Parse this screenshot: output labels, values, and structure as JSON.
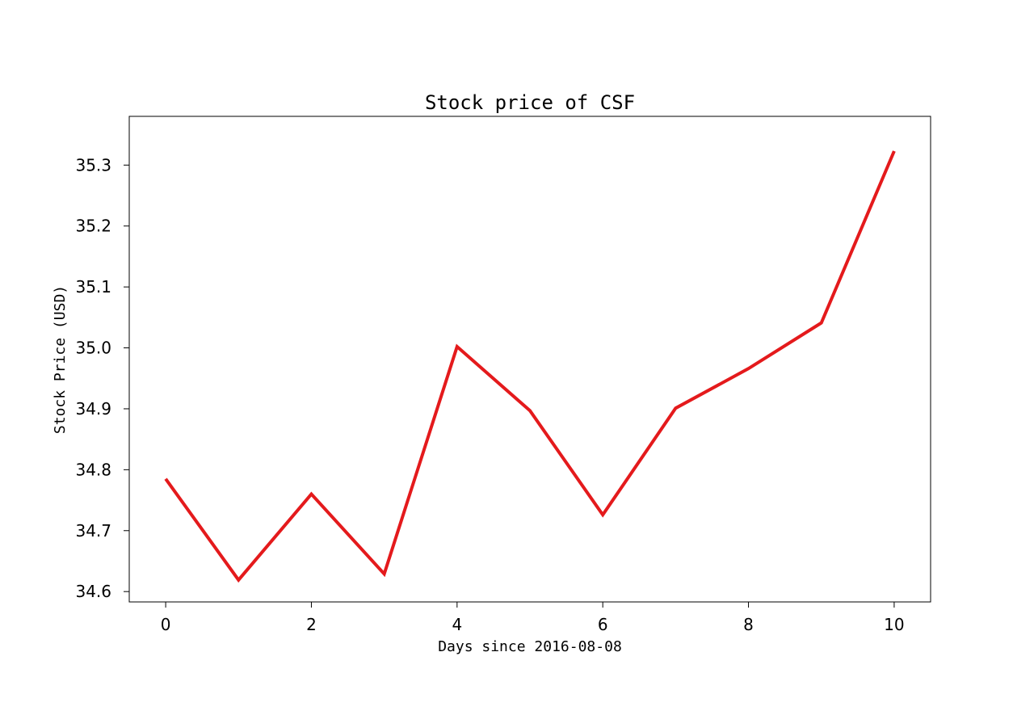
{
  "chart_data": {
    "type": "line",
    "title": "Stock price of CSF",
    "xlabel": "Days since 2016-08-08",
    "ylabel": "Stock Price (USD)",
    "x": [
      0,
      1,
      2,
      3,
      4,
      5,
      6,
      7,
      8,
      9,
      10
    ],
    "series": [
      {
        "values": [
          34.785,
          34.619,
          34.76,
          34.629,
          35.002,
          34.897,
          34.726,
          34.901,
          34.966,
          35.041,
          35.323
        ],
        "color": "#e41a1c"
      }
    ],
    "xlim": [
      -0.5,
      10.5
    ],
    "ylim": [
      34.583,
      35.38
    ],
    "xticks": [
      0,
      2,
      4,
      6,
      8,
      10
    ],
    "yticks": [
      34.6,
      34.7,
      34.8,
      34.9,
      35.0,
      35.1,
      35.2,
      35.3
    ],
    "ytick_labels": [
      "34.6",
      "34.7",
      "34.8",
      "34.9",
      "35.0",
      "35.1",
      "35.2",
      "35.3"
    ],
    "grid": false,
    "legend": false
  }
}
